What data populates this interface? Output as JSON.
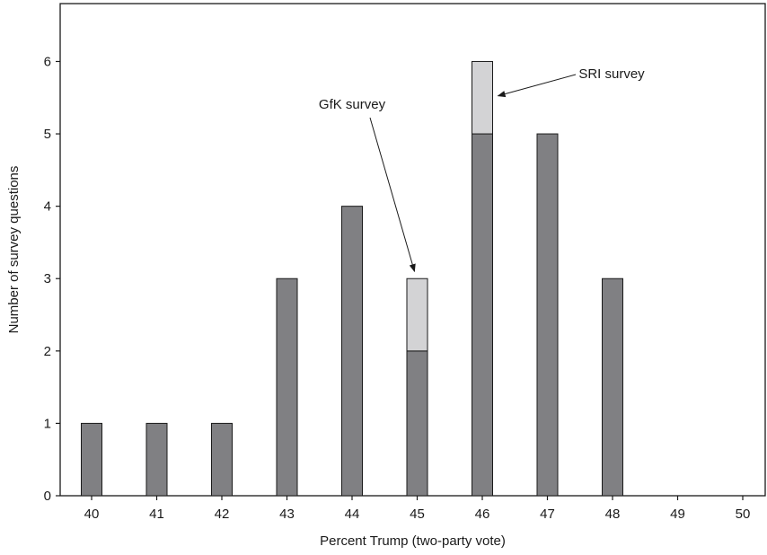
{
  "chart_data": {
    "type": "bar",
    "stacked": true,
    "title": "",
    "xlabel": "Percent Trump (two-party vote)",
    "ylabel": "Number of survey questions",
    "categories": [
      "40",
      "41",
      "42",
      "43",
      "44",
      "45",
      "46",
      "47",
      "48",
      "49",
      "50"
    ],
    "yticks": [
      0,
      1,
      2,
      3,
      4,
      5,
      6
    ],
    "ylim": [
      0,
      6.8
    ],
    "series": [
      {
        "values": [
          1,
          1,
          1,
          3,
          4,
          2,
          5,
          5,
          3,
          0,
          0
        ],
        "color": "#808083"
      },
      {
        "values": [
          0,
          0,
          0,
          0,
          0,
          1,
          1,
          0,
          0,
          0,
          0
        ],
        "color": "#d3d3d5"
      }
    ],
    "annotations": [
      {
        "text": "GfK survey",
        "category": "45",
        "y": 3
      },
      {
        "text": "SRI survey",
        "category": "46",
        "y": 5.5
      }
    ],
    "grid": false,
    "legend": "none"
  },
  "colors": {
    "axis": "#1a1a1a",
    "bar_stroke": "#1a1a1a"
  }
}
